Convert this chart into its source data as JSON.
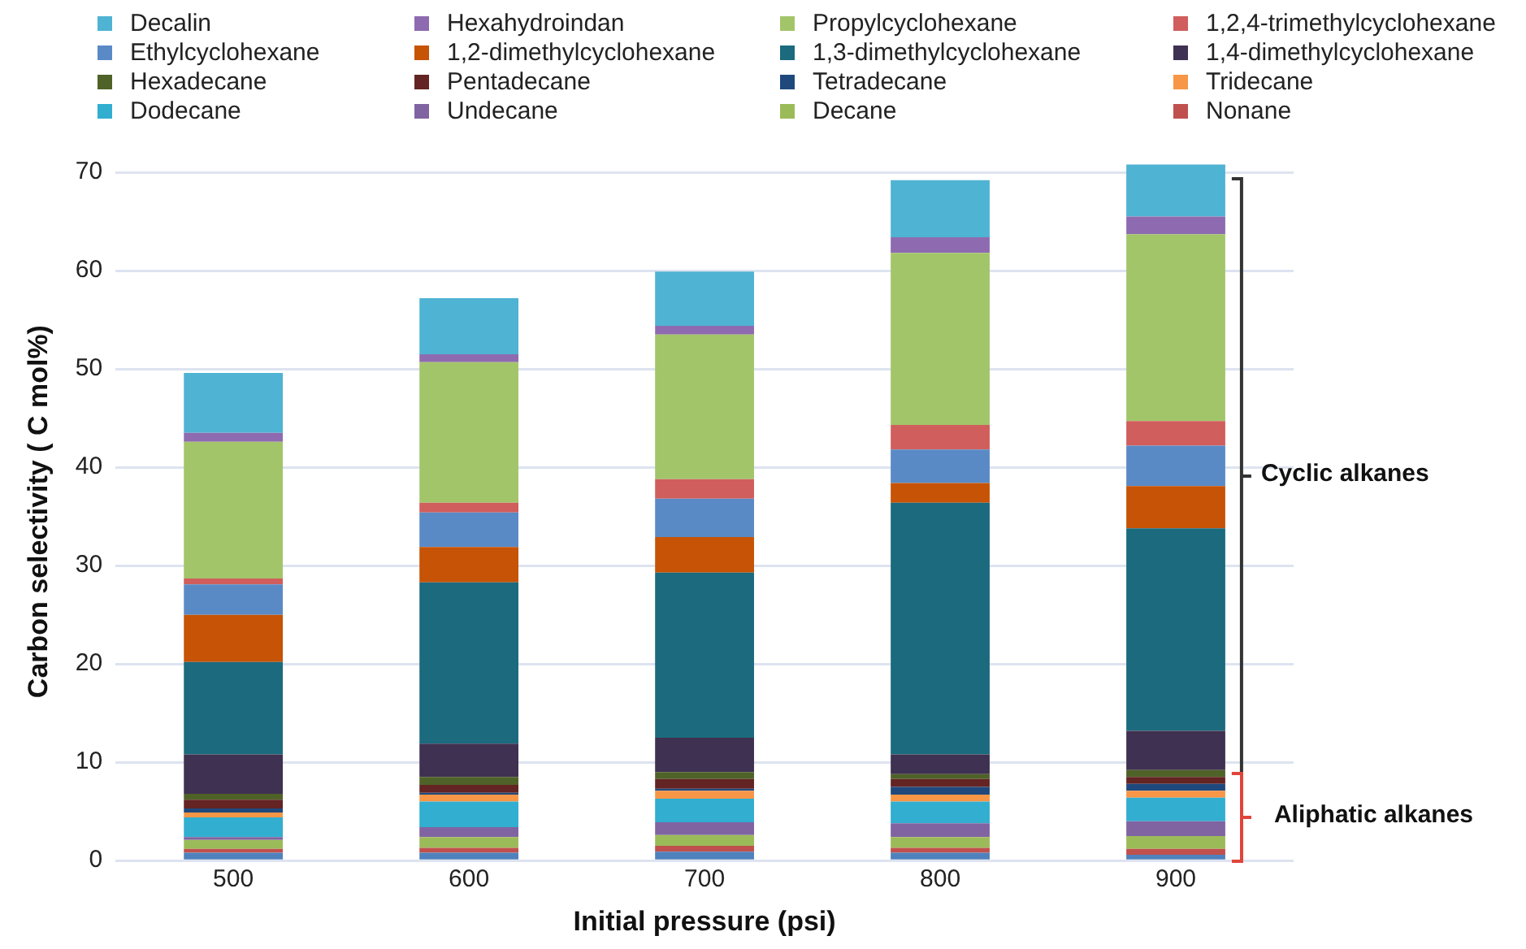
{
  "chart_data": {
    "type": "bar",
    "stacked": true,
    "xlabel": "Initial pressure (psi)",
    "ylabel": "Carbon selectivity ( C mol%)",
    "categories": [
      "500",
      "600",
      "700",
      "800",
      "900"
    ],
    "ylim": [
      0,
      71
    ],
    "yticks": [
      0,
      10,
      20,
      30,
      40,
      50,
      60,
      70
    ],
    "grid": "y",
    "legend": "top",
    "annotations": [
      "Cyclic alkanes",
      "Aliphatic alkanes"
    ],
    "series": [
      {
        "color": "#4f81bd",
        "values": [
          0.8,
          0.8,
          0.9,
          0.8,
          0.6
        ]
      },
      {
        "name": "Nonane",
        "color": "#c0504d",
        "values": [
          0.4,
          0.5,
          0.6,
          0.5,
          0.6
        ]
      },
      {
        "name": "Decane",
        "color": "#9bbb59",
        "values": [
          0.9,
          1.1,
          1.1,
          1.1,
          1.3
        ]
      },
      {
        "name": "Undecane",
        "color": "#8064a2",
        "values": [
          0.3,
          1.0,
          1.3,
          1.4,
          1.5
        ]
      },
      {
        "name": "Dodecane",
        "color": "#31aed0",
        "values": [
          2.0,
          2.6,
          2.4,
          2.2,
          2.4
        ]
      },
      {
        "name": "Tridecane",
        "color": "#f79646",
        "values": [
          0.5,
          0.7,
          0.8,
          0.7,
          0.7
        ]
      },
      {
        "name": "Tetradecane",
        "color": "#1f497d",
        "values": [
          0.4,
          0.2,
          0.2,
          0.8,
          0.7
        ]
      },
      {
        "name": "Pentadecane",
        "color": "#632423",
        "values": [
          0.9,
          0.8,
          1.0,
          0.8,
          0.7
        ]
      },
      {
        "name": "Hexadecane",
        "color": "#4f6228",
        "values": [
          0.6,
          0.8,
          0.7,
          0.5,
          0.7
        ]
      },
      {
        "name": "1,4-dimethylcyclohexane",
        "color": "#3f3151",
        "values": [
          4.0,
          3.4,
          3.5,
          2.0,
          4.0
        ]
      },
      {
        "name": "1,3-dimethylcyclohexane",
        "color": "#1b6a7e",
        "values": [
          9.4,
          16.4,
          16.8,
          25.6,
          20.6
        ]
      },
      {
        "name": "1,2-dimethylcyclohexane",
        "color": "#c65306",
        "values": [
          4.8,
          3.6,
          3.6,
          2.0,
          4.3
        ]
      },
      {
        "name": "Ethylcyclohexane",
        "color": "#5a8ac6",
        "values": [
          3.1,
          3.5,
          3.9,
          3.4,
          4.1
        ]
      },
      {
        "name": "1,2,4-trimethylcyclohexane",
        "color": "#d05e5c",
        "values": [
          0.6,
          1.0,
          2.0,
          2.5,
          2.5
        ]
      },
      {
        "name": "Propylcyclohexane",
        "color": "#a3c56a",
        "values": [
          13.9,
          14.3,
          14.7,
          17.5,
          19.0
        ]
      },
      {
        "name": "Hexahydroindan",
        "color": "#8e6bb0",
        "values": [
          0.9,
          0.8,
          0.9,
          1.6,
          1.8
        ]
      },
      {
        "name": "Decalin",
        "color": "#4fb3d3",
        "values": [
          6.1,
          5.7,
          5.5,
          5.8,
          5.3
        ]
      }
    ]
  }
}
